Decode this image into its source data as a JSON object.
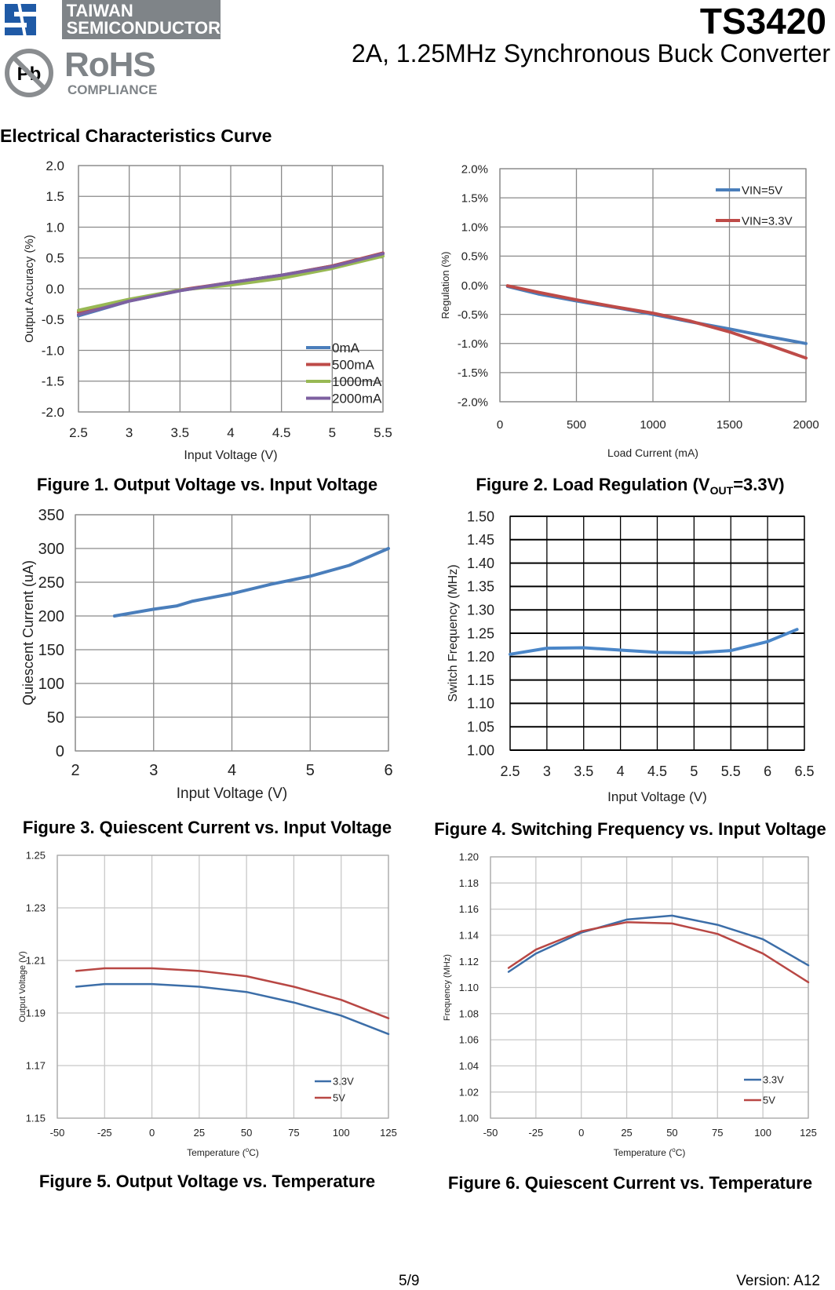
{
  "header": {
    "company_line1": "TAIWAN",
    "company_line2": "SEMICONDUCTOR",
    "rohs_label": "RoHS",
    "rohs_sub": "COMPLIANCE",
    "pb_label": "Pb",
    "part_number": "TS3420",
    "subtitle": "2A, 1.25MHz Synchronous Buck Converter"
  },
  "section_title": "Electrical Characteristics Curve",
  "footer": {
    "page": "5/9",
    "version": "Version: A12"
  },
  "chart_data": [
    {
      "type": "line",
      "caption": [
        "Figure 1. Output Voltage vs. Input Voltage"
      ],
      "xlabel": [
        "Input Voltage (V)"
      ],
      "ylabel": "Output Accuracy (%)",
      "xlim": [
        2.5,
        5.5
      ],
      "ylim": [
        -2.0,
        2.0
      ],
      "xticks": [
        "2.5",
        "3",
        "3.5",
        "4",
        "4.5",
        "5",
        "5.5"
      ],
      "yticks": [
        "2.0",
        "1.5",
        "1.0",
        "0.5",
        "0.0",
        "-0.5",
        "-1.0",
        "-1.5",
        "-2.0"
      ],
      "grid": true,
      "legend": "bottom-right",
      "series": [
        {
          "name": "0mA",
          "color": "#4a7ebb",
          "x": [
            2.5,
            3,
            3.5,
            4,
            4.5,
            5,
            5.5
          ],
          "y": [
            -0.44,
            -0.2,
            -0.03,
            0.1,
            0.22,
            0.37,
            0.57
          ]
        },
        {
          "name": "500mA",
          "color": "#be4b48",
          "x": [
            2.5,
            3,
            3.5,
            4,
            4.5,
            5,
            5.5
          ],
          "y": [
            -0.38,
            -0.18,
            -0.02,
            0.1,
            0.22,
            0.37,
            0.58
          ]
        },
        {
          "name": "1000mA",
          "color": "#98b954",
          "x": [
            2.5,
            3,
            3.5,
            4,
            4.5,
            5,
            5.5
          ],
          "y": [
            -0.35,
            -0.17,
            -0.02,
            0.06,
            0.17,
            0.33,
            0.53
          ]
        },
        {
          "name": "2000mA",
          "color": "#7d60a0",
          "x": [
            2.5,
            3,
            3.5,
            4,
            4.5,
            5,
            5.5
          ],
          "y": [
            -0.42,
            -0.2,
            -0.03,
            0.1,
            0.22,
            0.36,
            0.57
          ]
        }
      ]
    },
    {
      "type": "line",
      "caption": [
        "Figure 2. Load Regulation (V",
        "OUT",
        "=3.3V)"
      ],
      "xlabel": [
        "Load Current (mA)"
      ],
      "ylabel": "Regulation (%)",
      "xlim": [
        0,
        2000
      ],
      "ylim": [
        -2.0,
        2.0
      ],
      "xticks": [
        "0",
        "500",
        "1000",
        "1500",
        "2000"
      ],
      "yticks": [
        "2.0%",
        "1.5%",
        "1.0%",
        "0.5%",
        "0.0%",
        "-0.5%",
        "-1.0%",
        "-1.5%",
        "-2.0%"
      ],
      "grid": true,
      "legend": "top-right",
      "series": [
        {
          "name": "VIN=5V",
          "color": "#4a7ebb",
          "x": [
            50,
            250,
            500,
            750,
            1000,
            1250,
            1500,
            1750,
            2000
          ],
          "y": [
            -0.02,
            -0.15,
            -0.27,
            -0.38,
            -0.5,
            -0.63,
            -0.75,
            -0.88,
            -1.0
          ]
        },
        {
          "name": "VIN=3.3V",
          "color": "#be4b48",
          "x": [
            50,
            250,
            500,
            750,
            1000,
            1250,
            1500,
            1750,
            2000
          ],
          "y": [
            -0.01,
            -0.12,
            -0.25,
            -0.37,
            -0.48,
            -0.62,
            -0.8,
            -1.02,
            -1.25
          ]
        }
      ]
    },
    {
      "type": "line",
      "caption": [
        "Figure 3. Quiescent Current vs. Input Voltage"
      ],
      "xlabel": [
        "Input Voltage (V)"
      ],
      "ylabel": "Quiescent Current (uA)",
      "xlim": [
        2,
        6
      ],
      "ylim": [
        0,
        350
      ],
      "xticks": [
        "2",
        "3",
        "4",
        "5",
        "6"
      ],
      "yticks": [
        "350",
        "300",
        "250",
        "200",
        "150",
        "100",
        "50",
        "0"
      ],
      "grid": true,
      "legend": "none",
      "series": [
        {
          "color": "#4a7ebb",
          "x": [
            2.5,
            3,
            3.3,
            3.5,
            4,
            4.5,
            5,
            5.5,
            5.8,
            6
          ],
          "y": [
            200,
            210,
            215,
            222,
            233,
            247,
            259,
            275,
            290,
            300
          ]
        }
      ]
    },
    {
      "type": "line",
      "caption": [
        "Figure 4. Switching Frequency vs. Input Voltage"
      ],
      "xlabel": [
        "Input Voltage (V)"
      ],
      "ylabel": "Switch Frequency (MHz)",
      "xlim": [
        2.5,
        6.5
      ],
      "ylim": [
        1.0,
        1.5
      ],
      "xticks": [
        "2.5",
        "3",
        "3.5",
        "4",
        "4.5",
        "5",
        "5.5",
        "6",
        "6.5"
      ],
      "yticks": [
        "1.50",
        "1.45",
        "1.40",
        "1.35",
        "1.30",
        "1.25",
        "1.20",
        "1.15",
        "1.10",
        "1.05",
        "1.00"
      ],
      "grid": true,
      "legend": "none",
      "series": [
        {
          "color": "#4a86c8",
          "x": [
            2.5,
            3,
            3.5,
            4,
            4.5,
            5,
            5.5,
            6,
            6.4
          ],
          "y": [
            1.205,
            1.218,
            1.219,
            1.214,
            1.209,
            1.208,
            1.213,
            1.232,
            1.258
          ]
        }
      ]
    },
    {
      "type": "line",
      "caption": [
        "Figure 5. Output Voltage vs. Temperature"
      ],
      "xlabel": [
        "Temperature (",
        "o",
        "C)"
      ],
      "ylabel": "Output Voltage (V)",
      "xlim": [
        -50,
        125
      ],
      "ylim": [
        1.15,
        1.25
      ],
      "xticks": [
        "-50",
        "-25",
        "0",
        "25",
        "50",
        "75",
        "100",
        "125"
      ],
      "yticks": [
        "1.25",
        "1.23",
        "1.21",
        "1.19",
        "1.17",
        "1.15"
      ],
      "grid": true,
      "legend": "bottom-right",
      "series": [
        {
          "name": "3.3V",
          "color": "#3c6ea8",
          "x": [
            -40,
            -25,
            0,
            25,
            50,
            75,
            100,
            125
          ],
          "y": [
            1.2,
            1.201,
            1.201,
            1.2,
            1.198,
            1.194,
            1.189,
            1.182
          ]
        },
        {
          "name": "5V",
          "color": "#b84744",
          "x": [
            -40,
            -25,
            0,
            25,
            50,
            75,
            100,
            125
          ],
          "y": [
            1.206,
            1.207,
            1.207,
            1.206,
            1.204,
            1.2,
            1.195,
            1.188
          ]
        }
      ]
    },
    {
      "type": "line",
      "caption": [
        "Figure 6. Quiescent Current vs. Temperature"
      ],
      "xlabel": [
        "Temperature (",
        "o",
        "C)"
      ],
      "ylabel": "Frequency (MHz)",
      "xlim": [
        -50,
        125
      ],
      "ylim": [
        1.0,
        1.2
      ],
      "xticks": [
        "-50",
        "-25",
        "0",
        "25",
        "50",
        "75",
        "100",
        "125"
      ],
      "yticks": [
        "1.20",
        "1.18",
        "1.16",
        "1.14",
        "1.12",
        "1.10",
        "1.08",
        "1.06",
        "1.04",
        "1.02",
        "1.00"
      ],
      "grid": true,
      "legend": "bottom-right",
      "series": [
        {
          "name": "3.3V",
          "color": "#3c6ea8",
          "x": [
            -40,
            -25,
            0,
            25,
            50,
            75,
            100,
            125
          ],
          "y": [
            1.112,
            1.126,
            1.142,
            1.152,
            1.155,
            1.148,
            1.137,
            1.117
          ]
        },
        {
          "name": "5V",
          "color": "#b84744",
          "x": [
            -40,
            -25,
            0,
            25,
            50,
            75,
            100,
            125
          ],
          "y": [
            1.115,
            1.129,
            1.143,
            1.15,
            1.149,
            1.141,
            1.126,
            1.104
          ]
        }
      ]
    }
  ]
}
